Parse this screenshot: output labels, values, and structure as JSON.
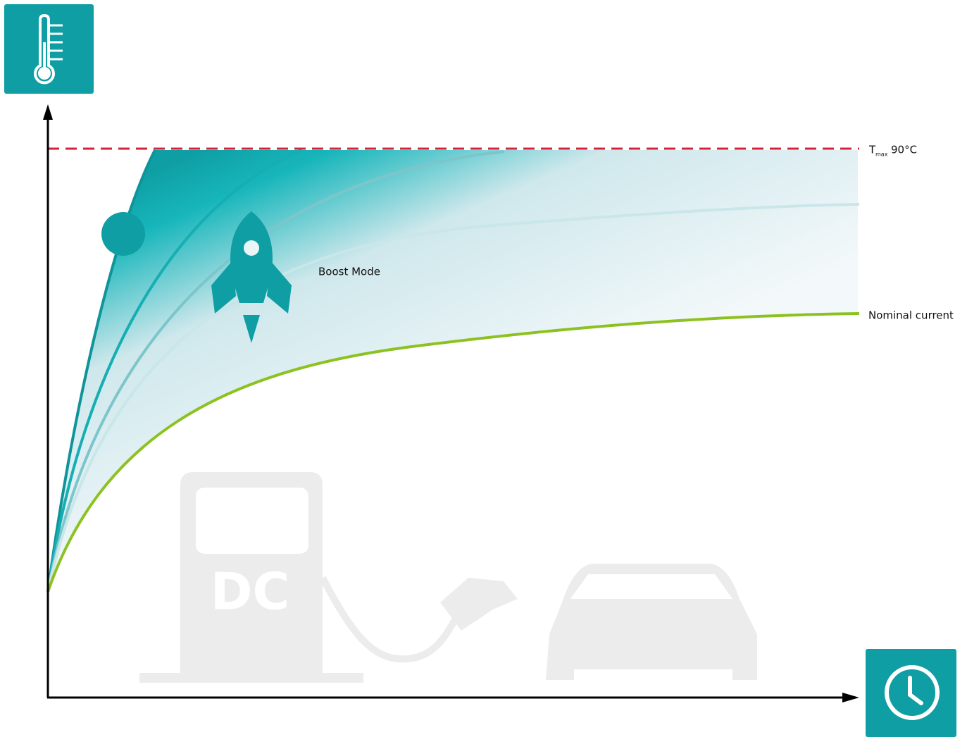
{
  "tmax": {
    "symbol": "T",
    "subscript": "max",
    "value": "90°C"
  },
  "labels": {
    "boost_mode": "Boost Mode",
    "nominal_current": "Nominal current"
  },
  "station_text": "DC"
}
